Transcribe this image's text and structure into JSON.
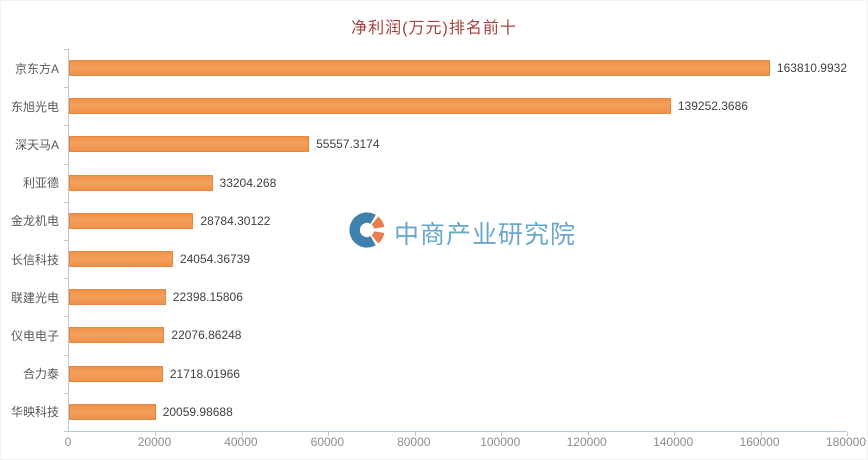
{
  "title": "净利润(万元)排名前十",
  "watermark": {
    "text": "中商产业研究院"
  },
  "colors": {
    "bar": "#F0924A",
    "bar_edge": "#E8873C",
    "title": "#A3423C",
    "axis": "#B7C9D3",
    "tick_label": "#8C8C8C",
    "category_label": "#595959",
    "value_label": "#404040",
    "watermark_text": "#69A7CC",
    "watermark_blue": "#3E81AC",
    "watermark_orange": "#E87E4E"
  },
  "chart_data": {
    "type": "bar",
    "orientation": "horizontal",
    "title": "净利润(万元)排名前十",
    "xlabel": "",
    "ylabel": "",
    "categories": [
      "京东方A",
      "东旭光电",
      "深天马A",
      "利亚德",
      "金龙机电",
      "长信科技",
      "联建光电",
      "仪电电子",
      "合力泰",
      "华映科技"
    ],
    "values": [
      163810.9932,
      139252.3686,
      55557.3174,
      33204.268,
      28784.30122,
      24054.36739,
      22398.15806,
      22076.86248,
      21718.01966,
      20059.98688
    ],
    "value_labels": [
      "163810.9932",
      "139252.3686",
      "55557.3174",
      "33204.268",
      "28784.30122",
      "24054.36739",
      "22398.15806",
      "22076.86248",
      "21718.01966",
      "20059.98688"
    ],
    "xlim": [
      0,
      180000
    ],
    "x_ticks": [
      0,
      20000,
      40000,
      60000,
      80000,
      100000,
      120000,
      140000,
      160000,
      180000
    ],
    "x_tick_labels": [
      "0",
      "20000",
      "40000",
      "60000",
      "80000",
      "100000",
      "120000",
      "140000",
      "160000",
      "180000"
    ],
    "grid": false,
    "legend": false,
    "data_labels": true
  }
}
